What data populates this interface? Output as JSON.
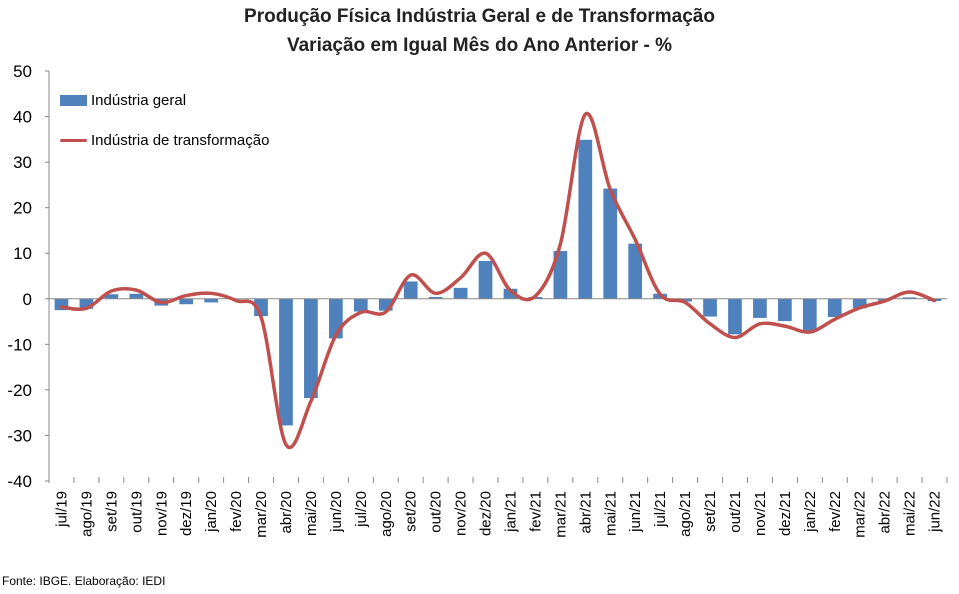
{
  "header": {
    "title_line1": "Produção Física Indústria Geral e de Transformação",
    "title_line2": "Variação em Igual Mês do Ano Anterior - %"
  },
  "footer": {
    "source": "Fonte: IBGE. Elaboração: IEDI"
  },
  "colors": {
    "bar": "#4F81BD",
    "line": "#C0504D",
    "axis": "#888888"
  },
  "chart_data": {
    "type": "bar+line",
    "title": "Produção Física Indústria Geral e de Transformação Variação em Igual Mês do Ano Anterior - %",
    "ylim": [
      -40,
      50
    ],
    "yticks": [
      50,
      40,
      30,
      20,
      10,
      0,
      -10,
      -20,
      -30,
      -40
    ],
    "grid": false,
    "legend_position": "top-left",
    "categories": [
      "jul/19",
      "ago/19",
      "set/19",
      "out/19",
      "nov/19",
      "dez/19",
      "jan/20",
      "fev/20",
      "mar/20",
      "abr/20",
      "mai/20",
      "jun/20",
      "jul/20",
      "ago/20",
      "set/20",
      "out/20",
      "nov/20",
      "dez/20",
      "jan/21",
      "fev/21",
      "mar/21",
      "abr/21",
      "mai/21",
      "jun/21",
      "jul/21",
      "ago/21",
      "set/21",
      "out/21",
      "nov/21",
      "dez/21",
      "jan/22",
      "fev/22",
      "mar/22",
      "abr/22",
      "mai/22",
      "jun/22"
    ],
    "series": [
      {
        "name": "Indústria geral",
        "kind": "bar",
        "values": [
          -2.5,
          -2.2,
          1.0,
          1.1,
          -1.5,
          -1.2,
          -0.8,
          0.0,
          -3.8,
          -27.8,
          -21.8,
          -8.7,
          -2.8,
          -2.6,
          3.8,
          0.4,
          2.4,
          8.3,
          2.2,
          0.4,
          10.5,
          34.9,
          24.2,
          12.1,
          1.1,
          -0.6,
          -3.9,
          -7.8,
          -4.2,
          -4.9,
          -7.0,
          -4.0,
          -2.1,
          -0.4,
          0.3,
          -0.5
        ]
      },
      {
        "name": "Indústria de transformação",
        "kind": "line",
        "values": [
          -1.8,
          -2.1,
          1.7,
          1.9,
          -0.8,
          0.7,
          1.2,
          -0.4,
          -4.0,
          -32.0,
          -22.5,
          -8.0,
          -3.0,
          -2.9,
          5.2,
          1.2,
          4.6,
          10.0,
          1.8,
          0.6,
          12.0,
          40.5,
          24.0,
          13.0,
          1.0,
          -0.8,
          -5.5,
          -8.5,
          -5.5,
          -6.0,
          -7.3,
          -4.5,
          -2.0,
          -0.5,
          1.5,
          -0.4
        ]
      }
    ]
  }
}
